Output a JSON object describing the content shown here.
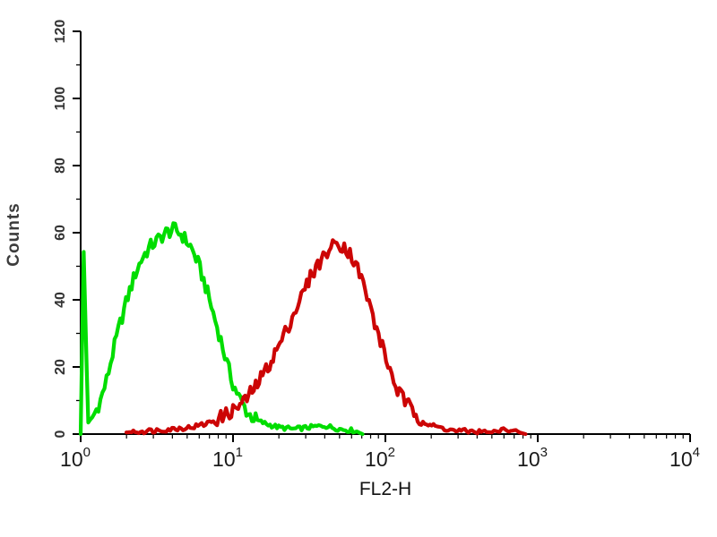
{
  "chart_data": {
    "type": "line",
    "subtype": "flow-cytometry-histogram-overlay",
    "title": "",
    "xlabel": "FL2-H",
    "ylabel": "Counts",
    "x_scale": "log10",
    "xlim_log": [
      0,
      4
    ],
    "ylim": [
      0,
      120
    ],
    "grid": false,
    "legend": "none",
    "background_color": "#ffffff",
    "axis_color": "#000000",
    "tick_text_color": "#333333",
    "y_ticks": [
      0,
      20,
      40,
      60,
      80,
      100,
      120
    ],
    "y_minor_step": 10,
    "x_tick_labels": [
      {
        "base": "10",
        "exp": "0"
      },
      {
        "base": "10",
        "exp": "1"
      },
      {
        "base": "10",
        "exp": "2"
      },
      {
        "base": "10",
        "exp": "3"
      },
      {
        "base": "10",
        "exp": "4"
      }
    ],
    "series": [
      {
        "name": "green",
        "color": "#00dd00",
        "peak_x": 4.2,
        "peak_count": 61,
        "points_log_count": [
          [
            0.0,
            0
          ],
          [
            0.02,
            54
          ],
          [
            0.05,
            3
          ],
          [
            0.09,
            6
          ],
          [
            0.13,
            10
          ],
          [
            0.17,
            16
          ],
          [
            0.21,
            24
          ],
          [
            0.26,
            33
          ],
          [
            0.31,
            41
          ],
          [
            0.36,
            48
          ],
          [
            0.41,
            53
          ],
          [
            0.46,
            56
          ],
          [
            0.51,
            58
          ],
          [
            0.56,
            60
          ],
          [
            0.62,
            61
          ],
          [
            0.67,
            59
          ],
          [
            0.72,
            56
          ],
          [
            0.77,
            51
          ],
          [
            0.82,
            44
          ],
          [
            0.87,
            36
          ],
          [
            0.92,
            28
          ],
          [
            0.96,
            21
          ],
          [
            1.0,
            15
          ],
          [
            1.05,
            10
          ],
          [
            1.1,
            6
          ],
          [
            1.16,
            4
          ],
          [
            1.22,
            3
          ],
          [
            1.3,
            2
          ],
          [
            1.4,
            1.5
          ],
          [
            1.5,
            2
          ],
          [
            1.6,
            2.5
          ],
          [
            1.7,
            1.5
          ],
          [
            1.8,
            1
          ],
          [
            1.85,
            0
          ]
        ]
      },
      {
        "name": "red",
        "color": "#cc0505",
        "peak_x": 47,
        "peak_count": 57,
        "points_log_count": [
          [
            0.3,
            0.5
          ],
          [
            0.45,
            1
          ],
          [
            0.6,
            1.5
          ],
          [
            0.72,
            2
          ],
          [
            0.82,
            3
          ],
          [
            0.92,
            5
          ],
          [
            1.0,
            7
          ],
          [
            1.08,
            10
          ],
          [
            1.16,
            15
          ],
          [
            1.24,
            21
          ],
          [
            1.32,
            28
          ],
          [
            1.4,
            36
          ],
          [
            1.46,
            42
          ],
          [
            1.52,
            48
          ],
          [
            1.58,
            52
          ],
          [
            1.63,
            55
          ],
          [
            1.68,
            57
          ],
          [
            1.73,
            56
          ],
          [
            1.78,
            53
          ],
          [
            1.83,
            48
          ],
          [
            1.88,
            41
          ],
          [
            1.93,
            33
          ],
          [
            1.98,
            26
          ],
          [
            2.03,
            19
          ],
          [
            2.08,
            13
          ],
          [
            2.14,
            9
          ],
          [
            2.2,
            6
          ],
          [
            2.27,
            3
          ],
          [
            2.35,
            2
          ],
          [
            2.45,
            1
          ],
          [
            2.58,
            0.8
          ],
          [
            2.7,
            0.5
          ],
          [
            2.8,
            1.5
          ],
          [
            2.88,
            0.5
          ],
          [
            2.92,
            0
          ]
        ]
      }
    ]
  }
}
